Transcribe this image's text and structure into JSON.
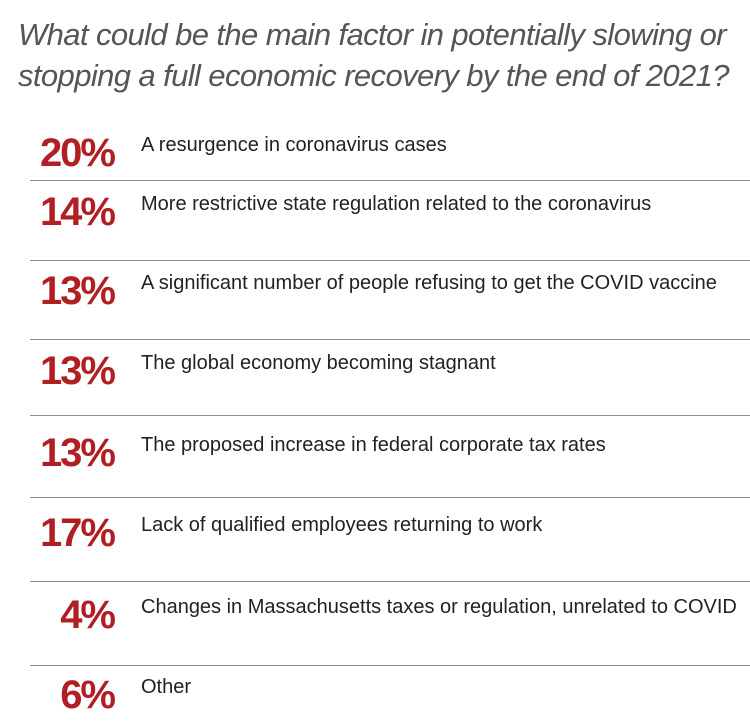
{
  "chart_data": {
    "type": "table",
    "title": "What could be the main factor in potentially slowing or stopping a full economic recovery by the end of 2021?",
    "rows": [
      {
        "value": 20,
        "display": "20%",
        "label": "A resurgence in coronavirus cases"
      },
      {
        "value": 14,
        "display": "14%",
        "label": "More restrictive state regulation related to the coronavirus"
      },
      {
        "value": 13,
        "display": "13%",
        "label": "A significant number of people refusing to get the COVID vaccine"
      },
      {
        "value": 13,
        "display": "13%",
        "label": "The global economy becoming stagnant"
      },
      {
        "value": 13,
        "display": "13%",
        "label": "The proposed increase in federal corporate tax rates"
      },
      {
        "value": 17,
        "display": "17%",
        "label": "Lack of qualified employees returning to work"
      },
      {
        "value": 4,
        "display": "4%",
        "label": "Changes in Massachusetts taxes or regulation, unrelated to COVID"
      },
      {
        "value": 6,
        "display": "6%",
        "label": "Other"
      }
    ],
    "colors": {
      "value": "#b01f24",
      "title": "#555555",
      "label": "#222222",
      "divider": "#8c8c8c"
    }
  }
}
